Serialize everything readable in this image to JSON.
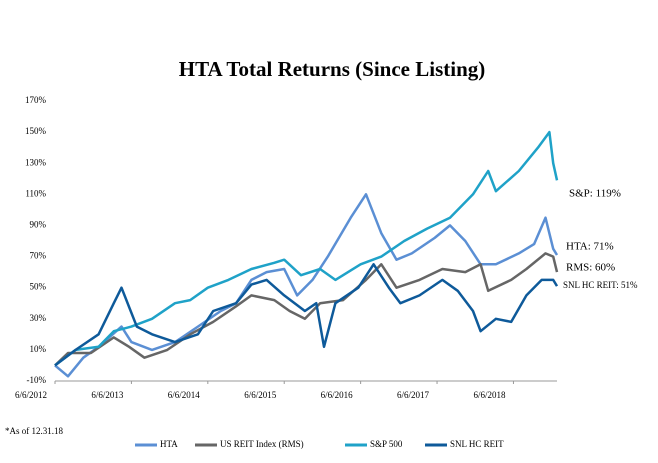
{
  "chart_data": {
    "type": "line",
    "title": "HTA Total Returns (Since Listing)",
    "xlim": [
      2012.43,
      2019.0
    ],
    "xticks": [
      {
        "value": 2012.43,
        "label": "6/6/2012"
      },
      {
        "value": 2013.43,
        "label": "6/6/2013"
      },
      {
        "value": 2014.43,
        "label": "6/6/2014"
      },
      {
        "value": 2015.43,
        "label": "6/6/2015"
      },
      {
        "value": 2016.43,
        "label": "6/6/2016"
      },
      {
        "value": 2017.43,
        "label": "6/6/2017"
      },
      {
        "value": 2018.43,
        "label": "6/6/2018"
      }
    ],
    "ylim": [
      -10,
      170
    ],
    "yticks": [
      {
        "value": -10,
        "label": "-10%"
      },
      {
        "value": 10,
        "label": "10%"
      },
      {
        "value": 30,
        "label": "30%"
      },
      {
        "value": 50,
        "label": "50%"
      },
      {
        "value": 70,
        "label": "70%"
      },
      {
        "value": 90,
        "label": "90%"
      },
      {
        "value": 110,
        "label": "110%"
      },
      {
        "value": 130,
        "label": "130%"
      },
      {
        "value": 150,
        "label": "150%"
      },
      {
        "value": 170,
        "label": "170%"
      }
    ],
    "series": [
      {
        "name": "HTA",
        "color": "#5b8fd4",
        "x": [
          2012.43,
          2012.6,
          2012.8,
          2013.0,
          2013.3,
          2013.43,
          2013.7,
          2014.0,
          2014.3,
          2014.6,
          2014.8,
          2015.0,
          2015.2,
          2015.43,
          2015.6,
          2015.8,
          2016.0,
          2016.3,
          2016.5,
          2016.7,
          2016.9,
          2017.1,
          2017.4,
          2017.6,
          2017.8,
          2018.0,
          2018.2,
          2018.5,
          2018.7,
          2018.85,
          2018.95,
          2019.0
        ],
        "values": [
          0,
          -7,
          5,
          12,
          25,
          15,
          10,
          15,
          25,
          35,
          40,
          55,
          60,
          62,
          45,
          55,
          70,
          95,
          110,
          85,
          68,
          72,
          82,
          90,
          80,
          65,
          65,
          72,
          78,
          95,
          75,
          71
        ]
      },
      {
        "name": "US REIT Index (RMS)",
        "color": "#666666",
        "x": [
          2012.43,
          2012.6,
          2012.9,
          2013.2,
          2013.4,
          2013.6,
          2013.9,
          2014.2,
          2014.5,
          2014.8,
          2015.0,
          2015.3,
          2015.5,
          2015.7,
          2015.9,
          2016.2,
          2016.5,
          2016.7,
          2016.9,
          2017.2,
          2017.5,
          2017.8,
          2018.0,
          2018.1,
          2018.4,
          2018.6,
          2018.85,
          2018.95,
          2019.0
        ],
        "values": [
          0,
          8,
          8,
          18,
          12,
          5,
          10,
          20,
          28,
          38,
          45,
          42,
          35,
          30,
          40,
          42,
          55,
          65,
          50,
          55,
          62,
          60,
          65,
          48,
          55,
          62,
          72,
          70,
          60
        ]
      },
      {
        "name": "S&P 500",
        "color": "#1fa2c8",
        "x": [
          2012.43,
          2012.7,
          2013.0,
          2013.2,
          2013.43,
          2013.7,
          2014.0,
          2014.2,
          2014.43,
          2014.7,
          2015.0,
          2015.3,
          2015.43,
          2015.65,
          2015.9,
          2016.1,
          2016.43,
          2016.7,
          2017.0,
          2017.3,
          2017.6,
          2017.9,
          2018.1,
          2018.2,
          2018.5,
          2018.75,
          2018.9,
          2018.95,
          2019.0
        ],
        "values": [
          0,
          10,
          12,
          22,
          25,
          30,
          40,
          42,
          50,
          55,
          62,
          66,
          68,
          58,
          62,
          55,
          65,
          70,
          80,
          88,
          95,
          110,
          125,
          112,
          125,
          140,
          150,
          130,
          119
        ]
      },
      {
        "name": "SNL HC REIT",
        "color": "#0e5a9a",
        "x": [
          2012.43,
          2012.7,
          2013.0,
          2013.2,
          2013.3,
          2013.5,
          2013.7,
          2014.0,
          2014.3,
          2014.5,
          2014.8,
          2015.0,
          2015.2,
          2015.43,
          2015.7,
          2015.85,
          2015.95,
          2016.1,
          2016.4,
          2016.6,
          2016.8,
          2016.95,
          2017.2,
          2017.5,
          2017.7,
          2017.9,
          2018.0,
          2018.2,
          2018.4,
          2018.6,
          2018.8,
          2018.95,
          2019.0
        ],
        "values": [
          0,
          10,
          20,
          40,
          50,
          25,
          20,
          15,
          20,
          35,
          40,
          52,
          55,
          45,
          35,
          40,
          12,
          40,
          50,
          65,
          50,
          40,
          45,
          55,
          48,
          35,
          22,
          30,
          28,
          45,
          55,
          55,
          51
        ]
      }
    ],
    "annotations": [
      "S&P: 119%",
      "HTA: 71%",
      "RMS: 60%",
      "SNL HC REIT: 51%"
    ],
    "footnote": "*As of 12.31.18"
  }
}
